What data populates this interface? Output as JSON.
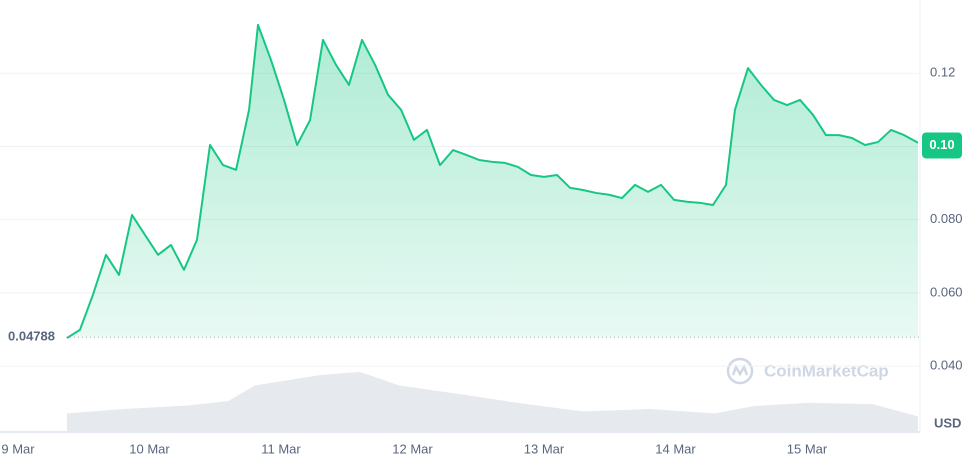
{
  "chart_data": {
    "type": "line",
    "series": [
      {
        "name": "Price",
        "color": "#16c784",
        "down_color": "#ea3943",
        "x": [
          9.373,
          9.471,
          9.57,
          9.669,
          9.768,
          9.867,
          9.966,
          10.065,
          10.163,
          10.262,
          10.361,
          10.46,
          10.559,
          10.658,
          10.757,
          10.825,
          10.924,
          11.023,
          11.122,
          11.221,
          11.319,
          11.418,
          11.517,
          11.616,
          11.715,
          11.814,
          11.913,
          12.011,
          12.11,
          12.209,
          12.308,
          12.407,
          12.506,
          12.605,
          12.703,
          12.802,
          12.901,
          13.0,
          13.099,
          13.198,
          13.297,
          13.395,
          13.494,
          13.593,
          13.692,
          13.791,
          13.89,
          13.989,
          14.087,
          14.186,
          14.285,
          14.384,
          14.452,
          14.551,
          14.65,
          14.749,
          14.848,
          14.947,
          15.046,
          15.144,
          15.243,
          15.342,
          15.441,
          15.54,
          15.639,
          15.738,
          15.844
        ],
        "values": [
          0.0477,
          0.0499,
          0.0595,
          0.0704,
          0.0649,
          0.0813,
          0.0758,
          0.0704,
          0.0731,
          0.0663,
          0.0745,
          0.1004,
          0.0949,
          0.0936,
          0.11,
          0.1332,
          0.1236,
          0.1127,
          0.1004,
          0.1072,
          0.1291,
          0.1223,
          0.1168,
          0.1291,
          0.1223,
          0.1141,
          0.11,
          0.1018,
          0.1045,
          0.0949,
          0.099,
          0.0977,
          0.0963,
          0.0958,
          0.0955,
          0.0944,
          0.0922,
          0.0917,
          0.0922,
          0.0887,
          0.0881,
          0.0873,
          0.0868,
          0.0859,
          0.0895,
          0.0876,
          0.0895,
          0.0854,
          0.0849,
          0.0846,
          0.084,
          0.0895,
          0.11,
          0.1214,
          0.1168,
          0.1127,
          0.1113,
          0.1127,
          0.1086,
          0.1031,
          0.1031,
          0.1023,
          0.1004,
          0.1012,
          0.1045,
          0.1031,
          0.101
        ]
      },
      {
        "name": "Volume",
        "color": "#e6e9ee",
        "axis": "volume",
        "x": [
          9.373,
          9.8,
          10.3,
          10.6,
          10.8,
          11.3,
          11.6,
          11.9,
          12.3,
          12.8,
          13.3,
          13.8,
          14.3,
          14.6,
          15.0,
          15.5,
          15.844
        ],
        "values": [
          0.3,
          0.37,
          0.43,
          0.5,
          0.75,
          0.92,
          0.97,
          0.75,
          0.63,
          0.47,
          0.33,
          0.37,
          0.3,
          0.42,
          0.47,
          0.45,
          0.25
        ]
      }
    ],
    "xlim": [
      8.863,
      15.844
    ],
    "xticks": [
      {
        "value": 9,
        "label": "9 Mar"
      },
      {
        "value": 10,
        "label": "10 Mar"
      },
      {
        "value": 11,
        "label": "11 Mar"
      },
      {
        "value": 12,
        "label": "12 Mar"
      },
      {
        "value": 13,
        "label": "13 Mar"
      },
      {
        "value": 14,
        "label": "14 Mar"
      },
      {
        "value": 15,
        "label": "15 Mar"
      }
    ],
    "ylim": [
      0.022,
      0.14
    ],
    "yticks": [
      {
        "value": 0.04,
        "label": "0.040"
      },
      {
        "value": 0.06,
        "label": "0.060"
      },
      {
        "value": 0.08,
        "label": "0.080"
      },
      {
        "value": 0.12,
        "label": "0.12"
      }
    ],
    "volume_lim": [
      0,
      1
    ],
    "current_price": {
      "value": 0.1,
      "label": "0.10"
    },
    "reference_price": {
      "value": 0.04788,
      "label": "0.04788"
    },
    "currency": "USD",
    "watermark": "CoinMarketCap",
    "grid": true
  }
}
